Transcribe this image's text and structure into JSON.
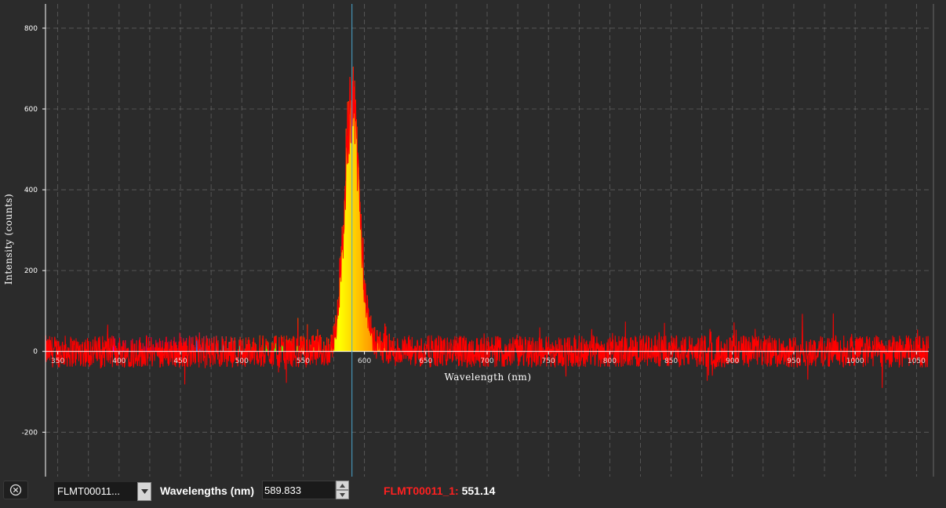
{
  "chart_data": {
    "type": "line",
    "xlabel": "Wavelength (nm)",
    "ylabel": "Intensity (counts)",
    "xlim": [
      340,
      1060
    ],
    "ylim": [
      -310,
      860
    ],
    "y_ticks": [
      800,
      600,
      400,
      200,
      0,
      -200
    ],
    "x_ticks": [
      350,
      400,
      450,
      500,
      550,
      600,
      650,
      700,
      750,
      800,
      850,
      900,
      950,
      1000,
      1050
    ],
    "x_tick_labels": [
      "350",
      "400",
      "450",
      "500",
      "550",
      "600",
      "650",
      "700",
      "750",
      "800",
      "850",
      "900",
      "950",
      "1000",
      "1050"
    ],
    "grid": true,
    "cursor_x": 589.833,
    "series": [
      {
        "name": "FLMT00011_1",
        "color": "#ff0000",
        "peak": {
          "x": 589.8,
          "y": 670
        },
        "noise_amplitude": 40
      }
    ]
  },
  "bottom_bar": {
    "close_icon": "circle-x-icon",
    "spectrum_select": "FLMT00011...",
    "wavelength_label": "Wavelengths (nm)",
    "wavelength_value": "589.833",
    "readout_name": "FLMT00011_1:",
    "readout_value": "551.14"
  }
}
